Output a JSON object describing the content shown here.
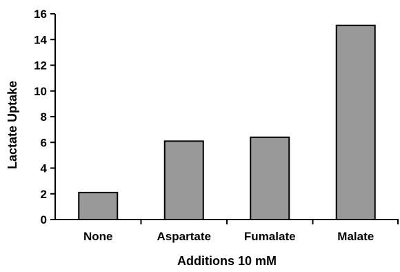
{
  "chart_data": {
    "type": "bar",
    "title": "",
    "xlabel": "Additions 10 mM",
    "ylabel": "Lactate Uptake",
    "categories": [
      "None",
      "Aspartate",
      "Fumalate",
      "Malate"
    ],
    "values": [
      2.1,
      6.1,
      6.4,
      15.1
    ],
    "ylim": [
      0,
      16
    ],
    "yticks": [
      "0",
      "2",
      "4",
      "6",
      "8",
      "10",
      "12",
      "14",
      "16"
    ],
    "grid": false,
    "legend": "none",
    "bar_color": "#999999",
    "bar_edge_color": "#000000"
  }
}
